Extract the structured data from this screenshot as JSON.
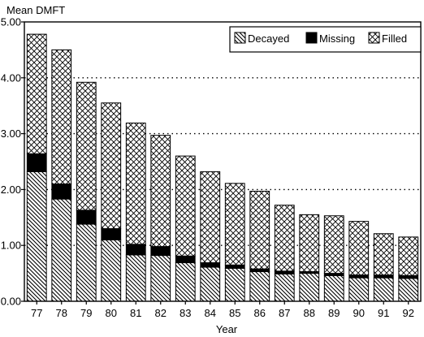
{
  "chart_data": {
    "type": "bar",
    "stacked": true,
    "ylabel": "Mean DMFT",
    "xlabel": "Year",
    "ylim": [
      0,
      5
    ],
    "yticks": [
      "0.00",
      "1.00",
      "2.00",
      "3.00",
      "4.00",
      "5.00"
    ],
    "ytick_values": [
      0,
      1,
      2,
      3,
      4,
      5
    ],
    "categories": [
      "77",
      "78",
      "79",
      "80",
      "81",
      "82",
      "83",
      "84",
      "85",
      "86",
      "87",
      "88",
      "89",
      "90",
      "91",
      "92"
    ],
    "series": [
      {
        "name": "Decayed",
        "pattern": "diagonal-hatch",
        "values": [
          2.32,
          1.83,
          1.38,
          1.1,
          0.83,
          0.82,
          0.69,
          0.61,
          0.59,
          0.53,
          0.49,
          0.5,
          0.46,
          0.42,
          0.42,
          0.41
        ]
      },
      {
        "name": "Missing",
        "pattern": "solid",
        "values": [
          0.32,
          0.27,
          0.25,
          0.2,
          0.19,
          0.16,
          0.12,
          0.08,
          0.06,
          0.05,
          0.05,
          0.03,
          0.04,
          0.05,
          0.05,
          0.05
        ]
      },
      {
        "name": "Filled",
        "pattern": "cross-hatch",
        "values": [
          2.14,
          2.4,
          2.29,
          2.25,
          2.17,
          1.99,
          1.79,
          1.63,
          1.46,
          1.39,
          1.18,
          1.02,
          1.03,
          0.96,
          0.74,
          0.69
        ]
      }
    ],
    "grid": "dotted horizontal",
    "legend_position": "top-right"
  },
  "colors": {
    "ink": "#000000",
    "background": "#ffffff"
  }
}
